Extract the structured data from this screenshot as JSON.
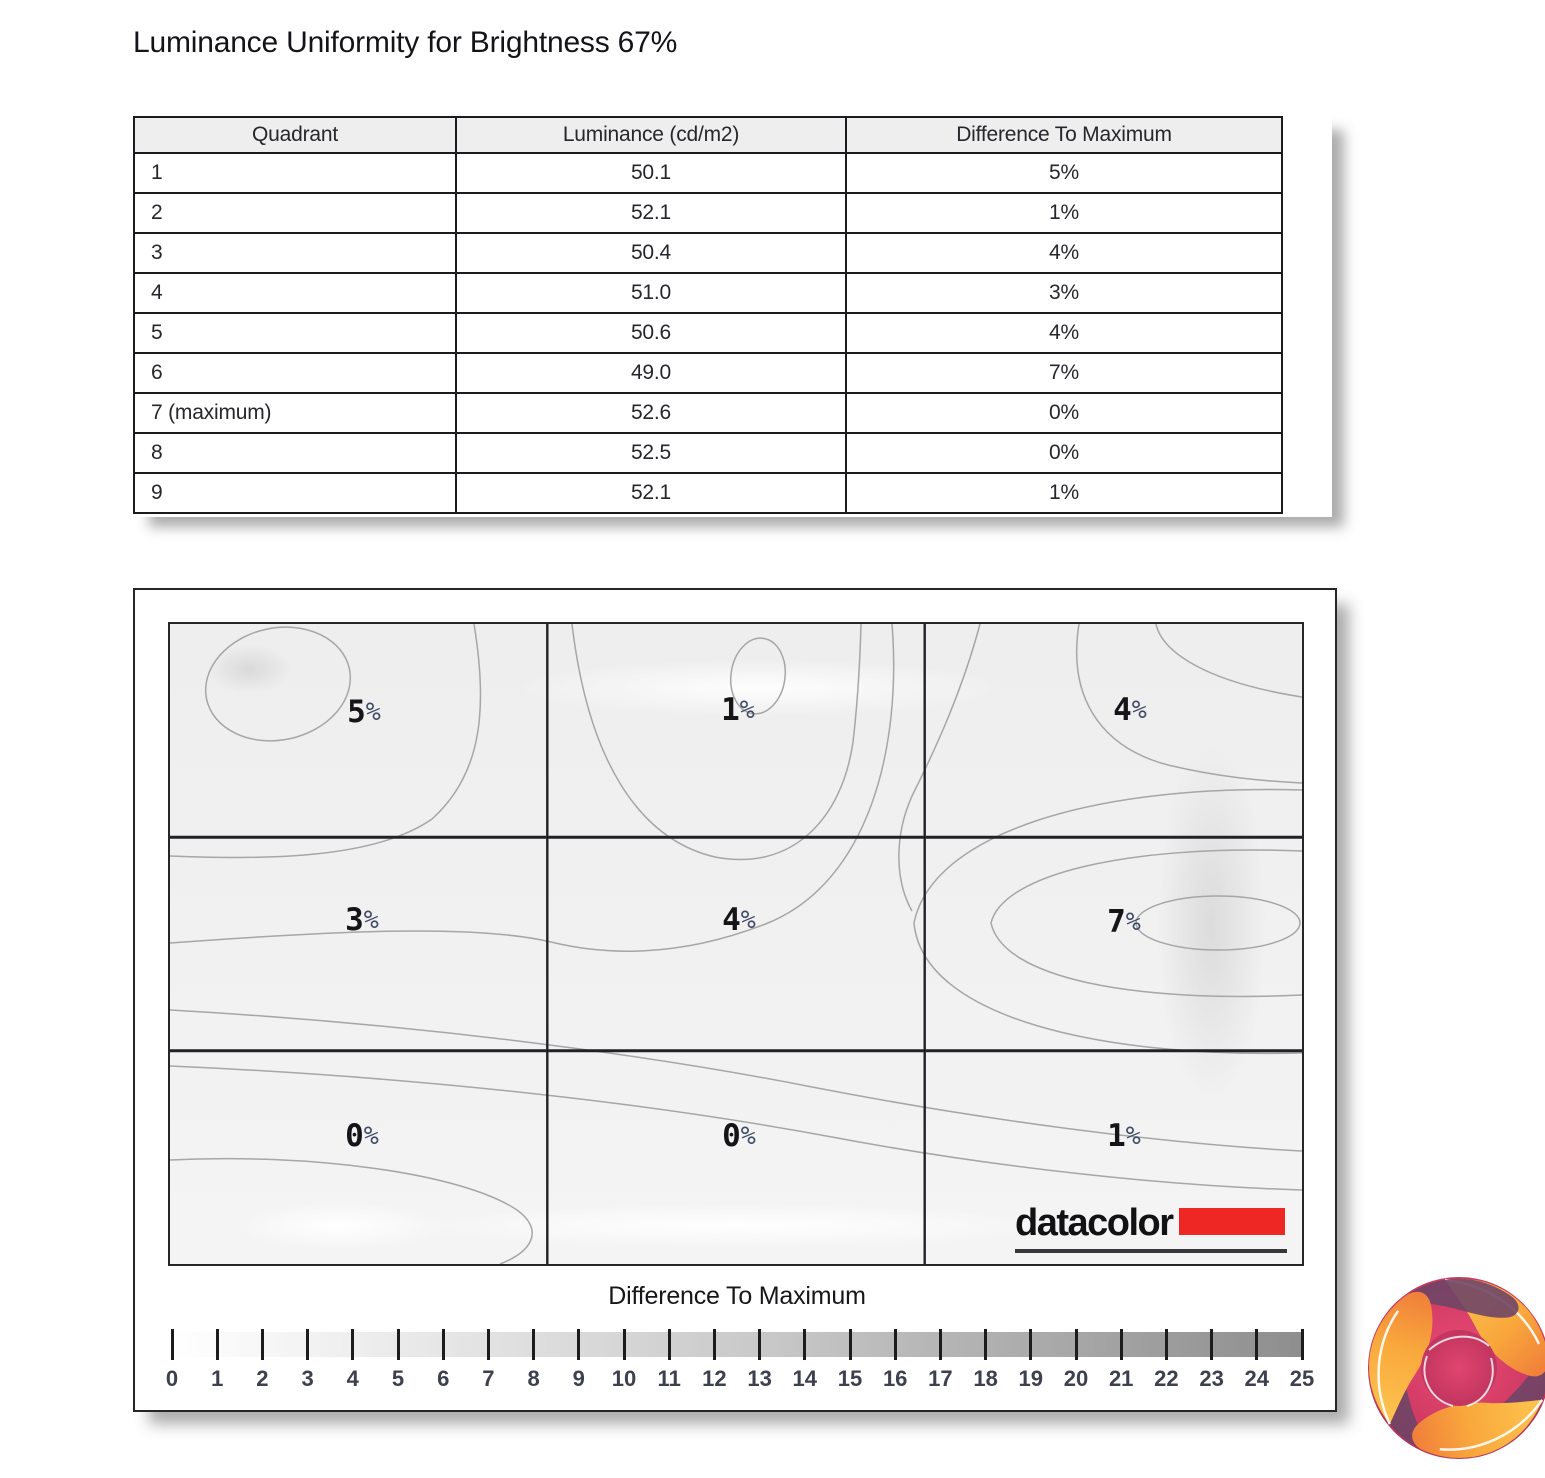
{
  "page": {
    "title": "Luminance Uniformity for Brightness 67%"
  },
  "table": {
    "headers": [
      "Quadrant",
      "Luminance (cd/m2)",
      "Difference To Maximum"
    ],
    "rows": [
      [
        "1",
        "50.1",
        "5%"
      ],
      [
        "2",
        "52.1",
        "1%"
      ],
      [
        "3",
        "50.4",
        "4%"
      ],
      [
        "4",
        "51.0",
        "3%"
      ],
      [
        "5",
        "50.6",
        "4%"
      ],
      [
        "6",
        "49.0",
        "7%"
      ],
      [
        "7 (maximum)",
        "52.6",
        "0%"
      ],
      [
        "8",
        "52.5",
        "0%"
      ],
      [
        "9",
        "52.1",
        "1%"
      ]
    ]
  },
  "contour": {
    "cell_labels": [
      "5%",
      "1%",
      "4%",
      "3%",
      "4%",
      "7%",
      "0%",
      "0%",
      "1%"
    ],
    "logo_text": "datacolor"
  },
  "scale": {
    "title": "Difference To Maximum",
    "min": 0,
    "max": 25,
    "tick_labels": [
      "0",
      "1",
      "2",
      "3",
      "4",
      "5",
      "6",
      "7",
      "8",
      "9",
      "10",
      "11",
      "12",
      "13",
      "14",
      "15",
      "16",
      "17",
      "18",
      "19",
      "20",
      "21",
      "22",
      "23",
      "24",
      "25"
    ]
  },
  "colors": {
    "accent_red": "#ee2724",
    "table_header_bg": "#eeeeee",
    "scale_end_gray": "#8e8e8e",
    "contour_line": "#a6a6a6",
    "kitguru_orange": "#f9a83c",
    "kitguru_pink": "#d9416b",
    "kitguru_purple": "#6f4566"
  },
  "chart_data": {
    "type": "heatmap",
    "title": "Luminance Uniformity for Brightness 67%",
    "grid_rows": 3,
    "grid_cols": 3,
    "difference_to_maximum_pct": [
      [
        5,
        1,
        4
      ],
      [
        3,
        4,
        7
      ],
      [
        0,
        0,
        1
      ]
    ],
    "luminance_cd_m2": [
      [
        50.1,
        52.1,
        50.4
      ],
      [
        51.0,
        50.6,
        49.0
      ],
      [
        52.6,
        52.5,
        52.1
      ]
    ],
    "maximum_quadrant": 7,
    "colorbar": {
      "label": "Difference To Maximum",
      "range": [
        0,
        25
      ],
      "style": "white-to-gray"
    }
  }
}
